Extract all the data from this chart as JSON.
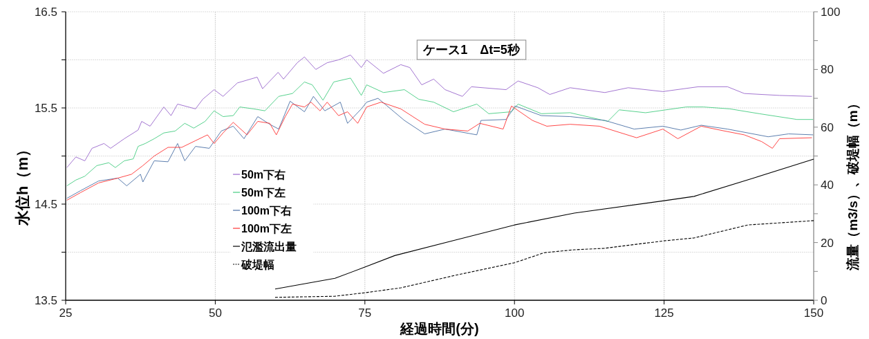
{
  "chart_data": {
    "type": "line",
    "title": "ケース1　Δt=5秒",
    "xlabel": "経過時間(分)",
    "ylabel": "水位h（m）",
    "y2label": "流量（m3/s）、破堤幅（m）",
    "xlim": [
      25,
      150
    ],
    "xticks": [
      25,
      50,
      75,
      100,
      125,
      150
    ],
    "ylim": [
      13.5,
      16.5
    ],
    "yticks": [
      13.5,
      {
        "value": 14,
        "label": null
      },
      14.5,
      {
        "value": 15,
        "label": null
      },
      15.5,
      {
        "value": 16,
        "label": null
      },
      16.5
    ],
    "y2lim": [
      0,
      100
    ],
    "y2ticks": [
      0,
      {
        "value": 10,
        "label": null
      },
      20,
      {
        "value": 30,
        "label": null
      },
      40,
      {
        "value": 50,
        "label": null
      },
      60,
      {
        "value": 70,
        "label": null
      },
      80,
      {
        "value": 90,
        "label": null
      },
      100
    ],
    "grid": true,
    "legend": "bottom left",
    "marker": "none",
    "series": [
      {
        "name": "50m下右",
        "color": "#9966cc",
        "x": [
          25.2,
          26.7,
          28.2,
          29.4,
          31.4,
          32.5,
          34.8,
          37.1,
          37.7,
          39.1,
          41.4,
          42.6,
          43.7,
          46.7,
          47.9,
          49.8,
          51.3,
          53.7,
          57.0,
          57.9,
          60.5,
          61.4,
          63.7,
          64.9,
          66.8,
          68.7,
          70.6,
          72.6,
          74.4,
          75.3,
          78.1,
          81.0,
          82.5,
          84.5,
          86.5,
          88.4,
          91.3,
          92.8,
          98.6,
          100.6,
          103.9,
          105.9,
          109.3,
          115.1,
          119.0,
          124.8,
          130.7,
          135.6,
          138.4,
          144.3,
          149.7
        ],
        "values": [
          14.88,
          14.99,
          14.95,
          15.08,
          15.13,
          15.08,
          15.18,
          15.27,
          15.36,
          15.31,
          15.51,
          15.42,
          15.54,
          15.49,
          15.59,
          15.69,
          15.62,
          15.76,
          15.82,
          15.7,
          15.87,
          15.8,
          15.97,
          16.03,
          15.9,
          15.97,
          16.0,
          16.05,
          15.92,
          16.0,
          15.86,
          15.95,
          15.92,
          15.74,
          15.8,
          15.69,
          15.62,
          15.72,
          15.69,
          15.78,
          15.71,
          15.64,
          15.71,
          15.66,
          15.71,
          15.67,
          15.72,
          15.72,
          15.65,
          15.63,
          15.62
        ]
      },
      {
        "name": "50m下左",
        "color": "#44cc80",
        "x": [
          25.2,
          26.7,
          28.2,
          30.2,
          32.2,
          33.3,
          34.8,
          36.3,
          37.1,
          38.3,
          39.8,
          41.4,
          43.3,
          44.9,
          46.4,
          48.3,
          49.8,
          51.3,
          53.0,
          54.1,
          56.4,
          58.3,
          60.6,
          62.9,
          64.9,
          66.2,
          68.0,
          69.8,
          72.6,
          74.4,
          75.3,
          78.1,
          81.6,
          84.0,
          86.5,
          89.8,
          93.7,
          95.7,
          99.5,
          100.6,
          104.5,
          109.3,
          115.6,
          117.5,
          121.9,
          128.7,
          131.6,
          136.0,
          140.9,
          147.2,
          149.9
        ],
        "values": [
          14.69,
          14.75,
          14.79,
          14.9,
          14.93,
          14.88,
          14.95,
          14.97,
          15.1,
          15.13,
          15.18,
          15.24,
          15.26,
          15.34,
          15.29,
          15.36,
          15.47,
          15.41,
          15.42,
          15.51,
          15.49,
          15.47,
          15.62,
          15.65,
          15.77,
          15.74,
          15.58,
          15.77,
          15.81,
          15.63,
          15.74,
          15.66,
          15.69,
          15.59,
          15.56,
          15.46,
          15.54,
          15.44,
          15.46,
          15.54,
          15.44,
          15.45,
          15.36,
          15.48,
          15.45,
          15.51,
          15.51,
          15.49,
          15.44,
          15.38,
          15.38
        ]
      },
      {
        "name": "100m下右",
        "color": "#4a6fa5",
        "x": [
          25.2,
          27.5,
          30.5,
          33.7,
          35.2,
          37.5,
          37.9,
          39.8,
          42.1,
          43.7,
          44.9,
          46.7,
          49.0,
          51.0,
          53.0,
          54.8,
          57.1,
          59.1,
          60.6,
          62.5,
          64.9,
          66.4,
          68.3,
          70.9,
          72.1,
          74.4,
          75.3,
          77.2,
          81.6,
          85.0,
          88.4,
          93.7,
          94.4,
          98.6,
          100.1,
          104.5,
          109.3,
          115.1,
          120.0,
          124.8,
          127.8,
          131.2,
          135.6,
          142.4,
          145.8,
          149.9
        ],
        "values": [
          14.56,
          14.64,
          14.74,
          14.77,
          14.69,
          14.81,
          14.73,
          14.95,
          14.94,
          15.13,
          14.95,
          15.1,
          15.08,
          15.26,
          15.31,
          15.18,
          15.41,
          15.33,
          15.28,
          15.57,
          15.46,
          15.62,
          15.47,
          15.56,
          15.34,
          15.49,
          15.56,
          15.6,
          15.37,
          15.23,
          15.28,
          15.22,
          15.37,
          15.38,
          15.52,
          15.42,
          15.41,
          15.37,
          15.28,
          15.31,
          15.27,
          15.32,
          15.28,
          15.2,
          15.23,
          15.22
        ]
      },
      {
        "name": "100m下左",
        "color": "#ff3333",
        "x": [
          25.2,
          27.5,
          30.5,
          33.7,
          36.0,
          37.9,
          39.8,
          42.1,
          44.4,
          46.7,
          48.7,
          49.8,
          51.3,
          53.0,
          55.3,
          57.1,
          59.1,
          60.2,
          61.7,
          62.9,
          64.9,
          66.0,
          67.5,
          68.7,
          70.6,
          72.1,
          73.8,
          75.3,
          77.7,
          81.0,
          85.0,
          88.4,
          92.2,
          94.2,
          98.1,
          99.5,
          103.0,
          105.4,
          109.3,
          114.2,
          120.4,
          124.8,
          127.3,
          131.2,
          135.1,
          138.4,
          141.3,
          143.1,
          144.3,
          149.7
        ],
        "values": [
          14.54,
          14.62,
          14.72,
          14.77,
          14.81,
          14.9,
          15.0,
          15.09,
          15.09,
          15.16,
          15.22,
          15.13,
          15.24,
          15.35,
          15.22,
          15.36,
          15.34,
          15.22,
          15.41,
          15.54,
          15.51,
          15.56,
          15.47,
          15.56,
          15.42,
          15.46,
          15.34,
          15.51,
          15.56,
          15.49,
          15.33,
          15.28,
          15.26,
          15.34,
          15.28,
          15.52,
          15.37,
          15.31,
          15.33,
          15.31,
          15.19,
          15.28,
          15.18,
          15.31,
          15.26,
          15.22,
          15.15,
          15.08,
          15.18,
          15.19
        ]
      },
      {
        "name": "氾濫流出量",
        "color": "#000000",
        "axis": "y2",
        "line_style": "solid",
        "x": [
          60,
          70,
          75,
          80,
          90,
          100,
          110,
          125,
          130,
          140,
          150
        ],
        "values": [
          3.9,
          7.6,
          11.5,
          15.5,
          20.8,
          26.1,
          30.2,
          34.5,
          36.0,
          42.4,
          48.9
        ]
      },
      {
        "name": "破堤幅",
        "color": "#000000",
        "axis": "y2",
        "line_style": "dashed",
        "x": [
          60,
          70,
          75,
          81,
          90,
          100,
          105,
          110,
          115,
          125,
          130,
          139,
          150
        ],
        "values": [
          1.0,
          1.4,
          2.6,
          4.3,
          8.6,
          13.0,
          16.5,
          17.5,
          18.0,
          20.6,
          21.6,
          26.1,
          27.6
        ]
      }
    ]
  }
}
